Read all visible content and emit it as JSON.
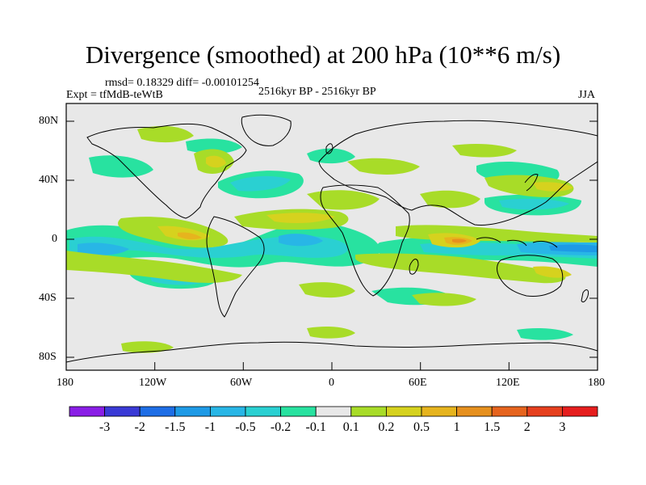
{
  "title": "Divergence (smoothed) at 200 hPa (10**6 m/s)",
  "stats": "rmsd= 0.18329 diff= -0.00101254",
  "expt": "Expt = tfMdB-teWtB",
  "period": "2516kyr BP - 2516kyr BP",
  "season": "JJA",
  "y_ticks": [
    "80N",
    "40N",
    "0",
    "40S",
    "80S"
  ],
  "x_ticks": [
    "180",
    "120W",
    "60W",
    "0",
    "60E",
    "120E",
    "180"
  ],
  "colorbar": {
    "labels": [
      "-3",
      "-2",
      "-1.5",
      "-1",
      "-0.5",
      "-0.2",
      "-0.1",
      "0.1",
      "0.2",
      "0.5",
      "1",
      "1.5",
      "2",
      "3"
    ],
    "colors": [
      "#8a1ee6",
      "#3a3ad6",
      "#1e6ee6",
      "#1e9ae6",
      "#28b6e6",
      "#2ad0d2",
      "#28e2a0",
      "#e8e8e8",
      "#a8dc28",
      "#d6d21e",
      "#e6b41e",
      "#e6901e",
      "#e6641e",
      "#e6401e",
      "#e61e1e"
    ]
  },
  "map_colors": {
    "background": "#e8e8e8",
    "pos_weak": "#a8dc28",
    "pos_mid": "#d6d21e",
    "pos_strong": "#e6b41e",
    "pos_max": "#e6901e",
    "neg_weak": "#28e2a0",
    "neg_mid": "#2ad0d2",
    "neg_strong": "#28b6e6",
    "neg_max": "#1e9ae6"
  }
}
